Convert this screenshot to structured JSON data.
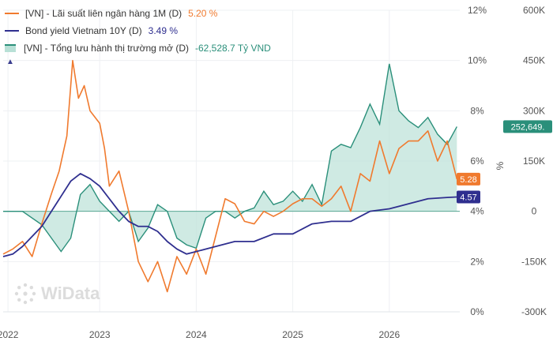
{
  "legend": {
    "items": [
      {
        "label": "[VN] - Lãi suất liên ngân hàng 1M (D)",
        "value": "5.20 %",
        "color": "#f07a2e",
        "kind": "line"
      },
      {
        "label": "Bond yield Vietnam 10Y (D)",
        "value": "3.49 %",
        "color": "#2f2f8f",
        "kind": "line"
      },
      {
        "label": "[VN] - Tổng lưu hành thị trường mở (D)",
        "value": "-62,528.7 Tỷ VND",
        "color": "#2a8f7a",
        "kind": "area"
      }
    ],
    "collapse_icon": "chevron-up-icon"
  },
  "watermark": "WiData",
  "badges": [
    {
      "text": "252,649.",
      "color": "#2a8f7a"
    },
    {
      "text": "5.28",
      "color": "#f07a2e"
    },
    {
      "text": "4.57",
      "color": "#2f2f8f"
    }
  ],
  "chart_data": {
    "type": "line",
    "x_ticks": [
      "2022",
      "2023",
      "2024",
      "2025",
      "2026"
    ],
    "left_axis": {
      "ticks": [
        "0%",
        "2%",
        "4%",
        "6%",
        "8%",
        "10%",
        "12%"
      ],
      "ylim": [
        0,
        12
      ],
      "unit_label": ""
    },
    "right_axis": {
      "ticks": [
        "-300K",
        "-150K",
        "0",
        "150K",
        "300K",
        "450K",
        "600K"
      ],
      "ylim": [
        -300000,
        600000
      ],
      "unit_label": "%"
    },
    "grid": true,
    "legend_position": "top-left",
    "series": [
      {
        "name": "[VN] - Lãi suất liên ngân hàng 1M (D)",
        "axis": "left",
        "color": "#f07a2e",
        "x": [
          2022.0,
          2022.1,
          2022.2,
          2022.3,
          2022.4,
          2022.5,
          2022.58,
          2022.66,
          2022.72,
          2022.78,
          2022.84,
          2022.9,
          2023.0,
          2023.05,
          2023.1,
          2023.2,
          2023.3,
          2023.4,
          2023.5,
          2023.6,
          2023.7,
          2023.8,
          2023.9,
          2024.0,
          2024.1,
          2024.2,
          2024.3,
          2024.4,
          2024.5,
          2024.6,
          2024.7,
          2024.8,
          2024.9,
          2025.0,
          2025.1,
          2025.2,
          2025.3,
          2025.4,
          2025.5,
          2025.6,
          2025.7,
          2025.8,
          2025.9,
          2026.0,
          2026.1,
          2026.2,
          2026.3,
          2026.4,
          2026.5,
          2026.6,
          2026.7
        ],
        "values": [
          2.3,
          2.5,
          2.8,
          2.2,
          3.5,
          4.7,
          5.6,
          7.0,
          10.0,
          8.5,
          9.0,
          8.0,
          7.5,
          6.5,
          5.0,
          5.6,
          4.0,
          2.0,
          1.2,
          2.0,
          0.8,
          2.2,
          1.5,
          2.5,
          1.5,
          3.0,
          4.5,
          4.3,
          3.6,
          3.5,
          4.0,
          3.8,
          4.0,
          4.3,
          4.5,
          4.5,
          4.2,
          4.5,
          5.0,
          4.0,
          5.5,
          5.2,
          6.8,
          5.5,
          6.5,
          6.8,
          6.8,
          7.2,
          6.0,
          6.8,
          5.28
        ]
      },
      {
        "name": "Bond yield Vietnam 10Y (D)",
        "axis": "left",
        "color": "#2f2f8f",
        "x": [
          2022.0,
          2022.1,
          2022.2,
          2022.3,
          2022.4,
          2022.5,
          2022.6,
          2022.7,
          2022.8,
          2022.9,
          2023.0,
          2023.1,
          2023.2,
          2023.3,
          2023.4,
          2023.5,
          2023.6,
          2023.7,
          2023.8,
          2023.9,
          2024.0,
          2024.2,
          2024.4,
          2024.6,
          2024.8,
          2025.0,
          2025.2,
          2025.4,
          2025.6,
          2025.8,
          2026.0,
          2026.2,
          2026.4,
          2026.6,
          2026.7
        ],
        "values": [
          2.2,
          2.3,
          2.6,
          3.0,
          3.4,
          4.0,
          4.6,
          5.2,
          5.5,
          5.3,
          5.0,
          4.5,
          4.0,
          3.6,
          3.4,
          3.4,
          3.2,
          2.8,
          2.5,
          2.3,
          2.4,
          2.6,
          2.8,
          2.8,
          3.1,
          3.1,
          3.5,
          3.6,
          3.6,
          4.0,
          4.1,
          4.3,
          4.5,
          4.55,
          4.57
        ]
      },
      {
        "name": "[VN] - Tổng lưu hành thị trường mở (D)",
        "axis": "right",
        "color": "#2a8f7a",
        "x": [
          2022.0,
          2022.2,
          2022.4,
          2022.6,
          2022.7,
          2022.8,
          2022.9,
          2023.0,
          2023.1,
          2023.2,
          2023.3,
          2023.4,
          2023.5,
          2023.6,
          2023.7,
          2023.8,
          2023.9,
          2024.0,
          2024.1,
          2024.2,
          2024.3,
          2024.4,
          2024.5,
          2024.6,
          2024.7,
          2024.8,
          2024.9,
          2025.0,
          2025.1,
          2025.2,
          2025.3,
          2025.4,
          2025.5,
          2025.6,
          2025.7,
          2025.8,
          2025.9,
          2026.0,
          2026.1,
          2026.2,
          2026.3,
          2026.4,
          2026.5,
          2026.6,
          2026.7
        ],
        "values": [
          0,
          0,
          -40000,
          -120000,
          -80000,
          50000,
          80000,
          30000,
          0,
          -30000,
          0,
          -90000,
          -50000,
          20000,
          0,
          -80000,
          -100000,
          -110000,
          -20000,
          0,
          0,
          -20000,
          0,
          10000,
          60000,
          20000,
          30000,
          60000,
          30000,
          80000,
          20000,
          180000,
          200000,
          190000,
          250000,
          320000,
          260000,
          440000,
          300000,
          270000,
          250000,
          280000,
          230000,
          200000,
          252649
        ]
      }
    ]
  }
}
